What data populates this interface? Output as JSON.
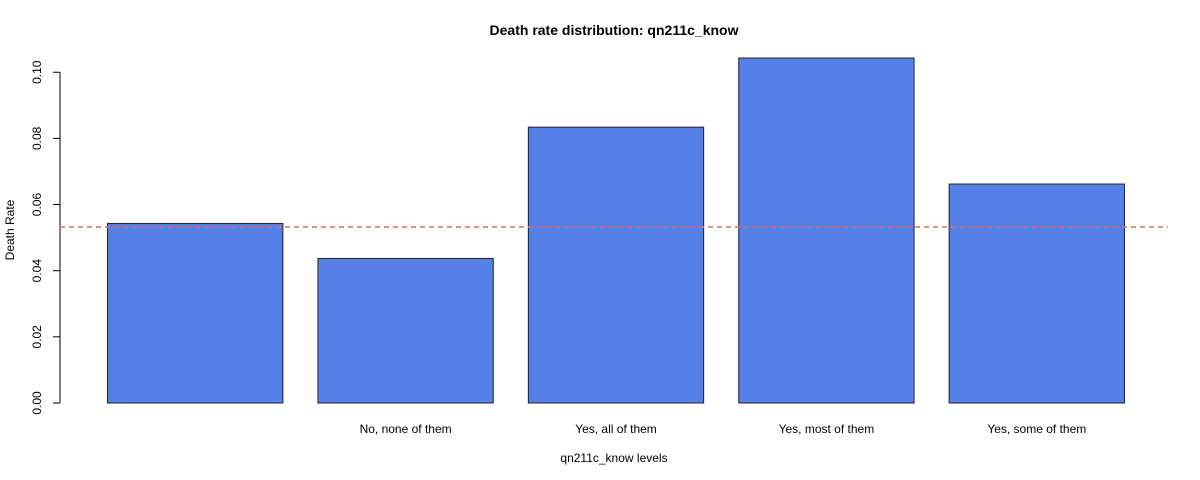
{
  "chart_data": {
    "type": "bar",
    "title": "Death rate distribution: qn211c_know",
    "xlabel": "qn211c_know levels",
    "ylabel": "Death Rate",
    "categories": [
      "",
      "No, none of them",
      "Yes, all of them",
      "Yes, most of them",
      "Yes, some of them"
    ],
    "values": [
      0.0543,
      0.0437,
      0.0834,
      0.1043,
      0.0662
    ],
    "ylim": [
      0,
      0.104
    ],
    "yticks": [
      0.0,
      0.02,
      0.04,
      0.06,
      0.08,
      0.1
    ],
    "ytick_labels": [
      "0.00",
      "0.02",
      "0.04",
      "0.06",
      "0.08",
      "0.10"
    ],
    "reference_line": {
      "value": 0.0532,
      "style": "dashed"
    },
    "grid": false,
    "colors": {
      "bar": "#5480E8",
      "reference": "#E06666"
    }
  }
}
